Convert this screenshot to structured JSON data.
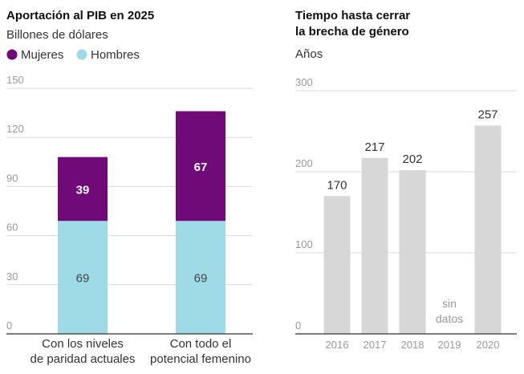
{
  "chart_data": [
    {
      "type": "bar",
      "stacked": true,
      "title": "Aportación al PIB en 2025",
      "subtitle": "Billones de dólares",
      "categories": [
        [
          "Con los niveles",
          "de paridad actuales"
        ],
        [
          "Con todo el",
          "potencial femenino"
        ]
      ],
      "series": [
        {
          "name": "Hombres",
          "values": [
            69,
            69
          ],
          "color": "#9fdbe6"
        },
        {
          "name": "Mujeres",
          "values": [
            39,
            67
          ],
          "color": "#6f0a78"
        }
      ],
      "legend_order": [
        "Mujeres",
        "Hombres"
      ],
      "legend_position": "top-left",
      "ylim": [
        0,
        150
      ],
      "yticks": [
        0,
        30,
        60,
        90,
        120,
        150
      ],
      "grid": true
    },
    {
      "type": "bar",
      "title": [
        "Tiempo hasta cerrar",
        "la brecha de género"
      ],
      "subtitle": "Años",
      "categories": [
        "2016",
        "2017",
        "2018",
        "2019",
        "2020"
      ],
      "values": [
        170,
        217,
        202,
        null,
        257
      ],
      "missing_label": [
        "sin",
        "datos"
      ],
      "color": "#d7d7d7",
      "ylim": [
        0,
        300
      ],
      "yticks": [
        0,
        100,
        200,
        300
      ],
      "grid": true
    }
  ]
}
